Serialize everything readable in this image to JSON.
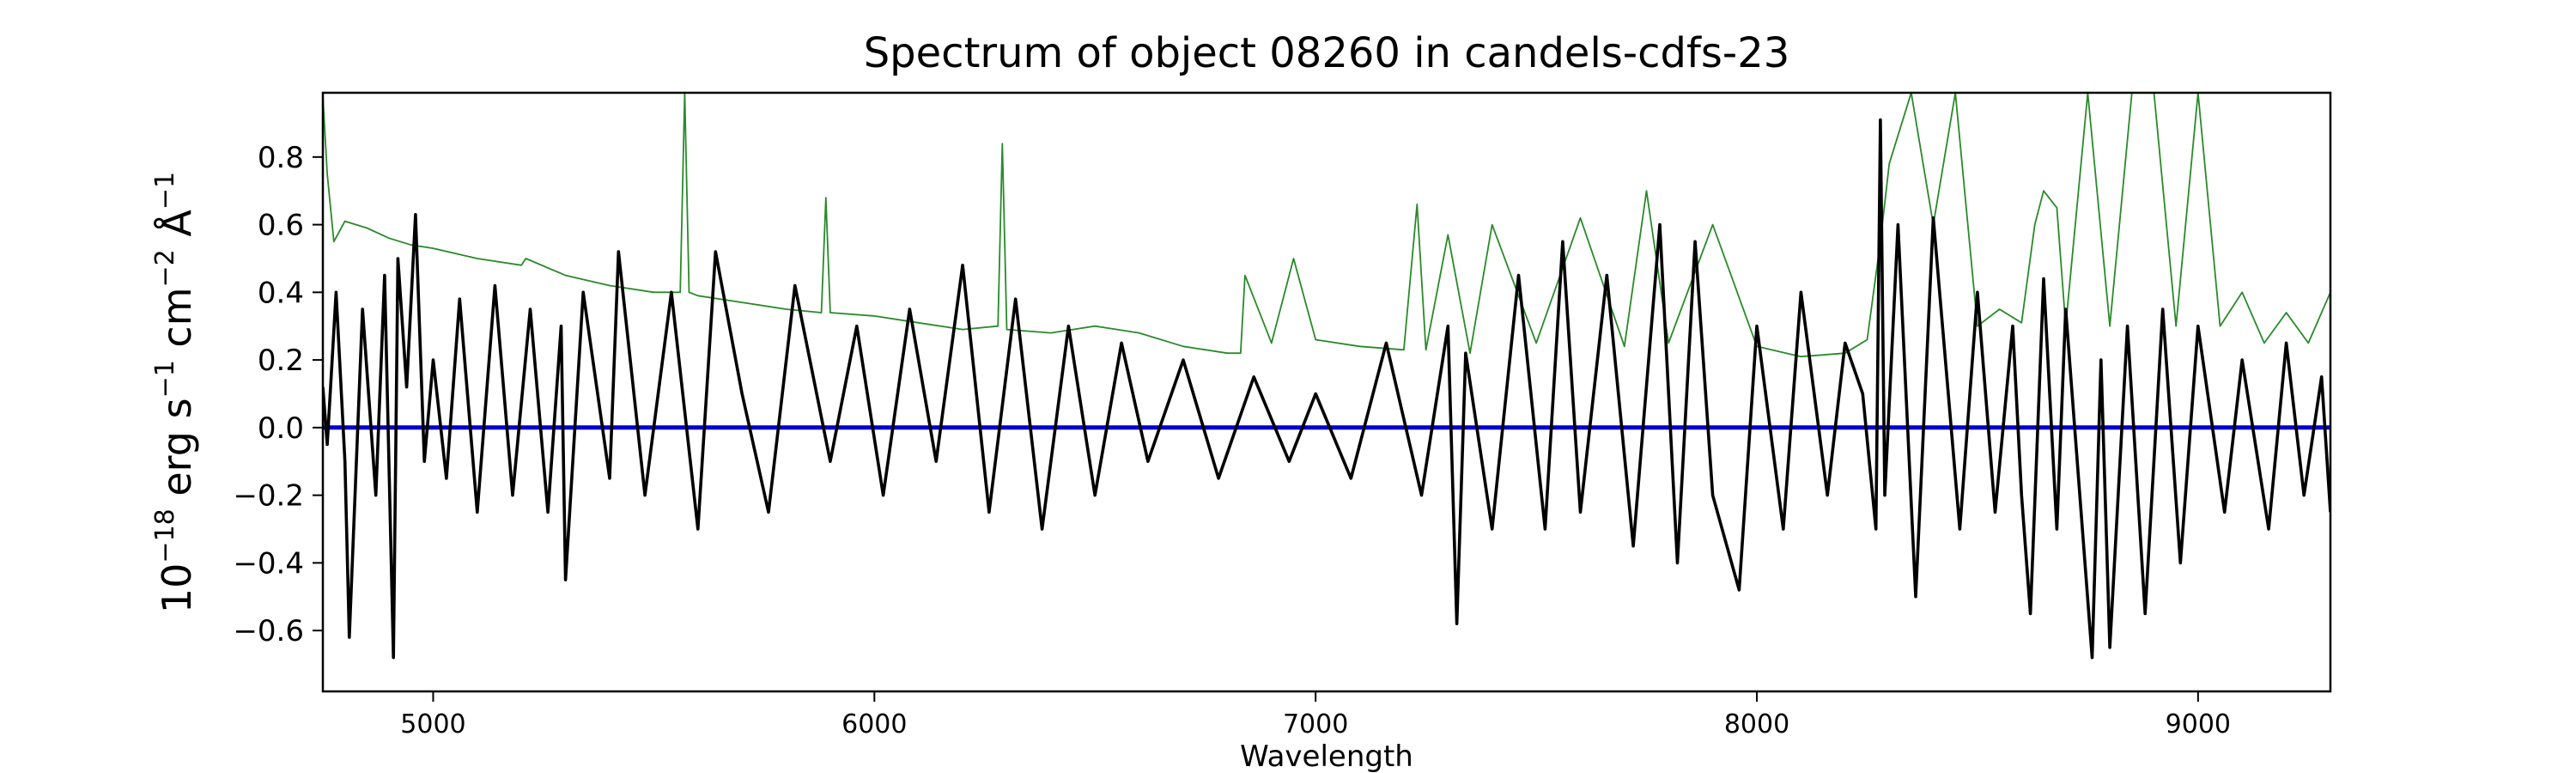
{
  "chart_data": {
    "type": "line",
    "title": "Spectrum of object 08260 in candels-cdfs-23",
    "xlabel": "Wavelength",
    "ylabel": {
      "base": "10",
      "exp1": "−18",
      "t1": " erg s",
      "exp2": "−1",
      "t2": " cm",
      "exp3": "−2",
      "t3": " Å",
      "exp4": "−1"
    },
    "xlim": [
      4750,
      9300
    ],
    "ylim": [
      -0.78,
      0.99
    ],
    "xticks": [
      5000,
      6000,
      7000,
      8000,
      9000
    ],
    "yticks": [
      -0.6,
      -0.4,
      -0.2,
      0.0,
      0.2,
      0.4,
      0.6,
      0.8
    ],
    "ytick_labels": [
      "−0.6",
      "−0.4",
      "−0.2",
      "0.0",
      "0.2",
      "0.4",
      "0.6",
      "0.8"
    ],
    "grid": false,
    "colors": {
      "flux": "#000000",
      "error": "#2a8a2a",
      "zero": "#0000cc"
    },
    "series": [
      {
        "role": "zero",
        "x": [
          4750,
          9300
        ],
        "y": [
          0.0,
          0.0
        ]
      },
      {
        "role": "error",
        "x": [
          4750,
          4760,
          4775,
          4800,
          4850,
          4900,
          4950,
          5000,
          5100,
          5200,
          5210,
          5300,
          5400,
          5500,
          5560,
          5570,
          5580,
          5600,
          5700,
          5800,
          5880,
          5890,
          5900,
          6000,
          6100,
          6200,
          6280,
          6290,
          6300,
          6400,
          6500,
          6600,
          6700,
          6800,
          6830,
          6840,
          6900,
          6950,
          7000,
          7100,
          7200,
          7230,
          7250,
          7300,
          7350,
          7400,
          7500,
          7600,
          7700,
          7750,
          7800,
          7900,
          8000,
          8100,
          8200,
          8250,
          8280,
          8300,
          8350,
          8400,
          8450,
          8500,
          8550,
          8600,
          8630,
          8650,
          8680,
          8700,
          8750,
          8800,
          8850,
          8900,
          8950,
          9000,
          9050,
          9100,
          9150,
          9200,
          9250,
          9300
        ],
        "y": [
          0.98,
          0.75,
          0.55,
          0.61,
          0.59,
          0.56,
          0.54,
          0.53,
          0.5,
          0.48,
          0.5,
          0.45,
          0.42,
          0.4,
          0.4,
          0.99,
          0.4,
          0.39,
          0.37,
          0.35,
          0.34,
          0.68,
          0.34,
          0.33,
          0.31,
          0.29,
          0.3,
          0.84,
          0.29,
          0.28,
          0.3,
          0.28,
          0.24,
          0.22,
          0.22,
          0.45,
          0.25,
          0.5,
          0.26,
          0.24,
          0.23,
          0.66,
          0.23,
          0.57,
          0.22,
          0.6,
          0.25,
          0.62,
          0.24,
          0.7,
          0.25,
          0.6,
          0.24,
          0.21,
          0.22,
          0.26,
          0.55,
          0.78,
          0.99,
          0.6,
          0.99,
          0.3,
          0.35,
          0.31,
          0.6,
          0.7,
          0.65,
          0.3,
          0.99,
          0.3,
          0.99,
          0.99,
          0.3,
          0.99,
          0.3,
          0.4,
          0.25,
          0.34,
          0.25,
          0.4
        ]
      },
      {
        "role": "flux",
        "x": [
          4750,
          4760,
          4780,
          4800,
          4810,
          4840,
          4870,
          4890,
          4910,
          4920,
          4940,
          4960,
          4980,
          5000,
          5030,
          5060,
          5100,
          5140,
          5180,
          5220,
          5260,
          5290,
          5300,
          5340,
          5400,
          5420,
          5480,
          5540,
          5600,
          5640,
          5700,
          5760,
          5820,
          5900,
          5960,
          6020,
          6080,
          6140,
          6200,
          6260,
          6320,
          6380,
          6440,
          6500,
          6560,
          6620,
          6700,
          6780,
          6860,
          6940,
          7000,
          7080,
          7160,
          7240,
          7300,
          7320,
          7340,
          7400,
          7460,
          7520,
          7560,
          7600,
          7660,
          7720,
          7780,
          7820,
          7860,
          7900,
          7960,
          8000,
          8060,
          8100,
          8160,
          8200,
          8240,
          8270,
          8280,
          8290,
          8320,
          8360,
          8400,
          8460,
          8500,
          8540,
          8580,
          8600,
          8620,
          8650,
          8680,
          8700,
          8760,
          8780,
          8800,
          8840,
          8880,
          8920,
          8960,
          9000,
          9060,
          9100,
          9160,
          9200,
          9240,
          9280,
          9300
        ],
        "y": [
          0.12,
          -0.05,
          0.4,
          -0.1,
          -0.62,
          0.35,
          -0.2,
          0.45,
          -0.68,
          0.5,
          0.12,
          0.63,
          -0.1,
          0.2,
          -0.15,
          0.38,
          -0.25,
          0.42,
          -0.2,
          0.35,
          -0.25,
          0.3,
          -0.45,
          0.4,
          -0.15,
          0.52,
          -0.2,
          0.4,
          -0.3,
          0.52,
          0.1,
          -0.25,
          0.42,
          -0.1,
          0.3,
          -0.2,
          0.35,
          -0.1,
          0.48,
          -0.25,
          0.38,
          -0.3,
          0.3,
          -0.2,
          0.25,
          -0.1,
          0.2,
          -0.15,
          0.15,
          -0.1,
          0.1,
          -0.15,
          0.25,
          -0.2,
          0.3,
          -0.58,
          0.22,
          -0.3,
          0.45,
          -0.3,
          0.55,
          -0.25,
          0.45,
          -0.35,
          0.6,
          -0.4,
          0.55,
          -0.2,
          -0.48,
          0.3,
          -0.3,
          0.4,
          -0.2,
          0.25,
          0.1,
          -0.3,
          0.91,
          -0.2,
          0.6,
          -0.5,
          0.62,
          -0.3,
          0.4,
          -0.25,
          0.3,
          -0.2,
          -0.55,
          0.44,
          -0.3,
          0.35,
          -0.68,
          0.2,
          -0.65,
          0.3,
          -0.55,
          0.35,
          -0.4,
          0.3,
          -0.25,
          0.2,
          -0.3,
          0.25,
          -0.2,
          0.15,
          -0.25
        ]
      }
    ]
  }
}
